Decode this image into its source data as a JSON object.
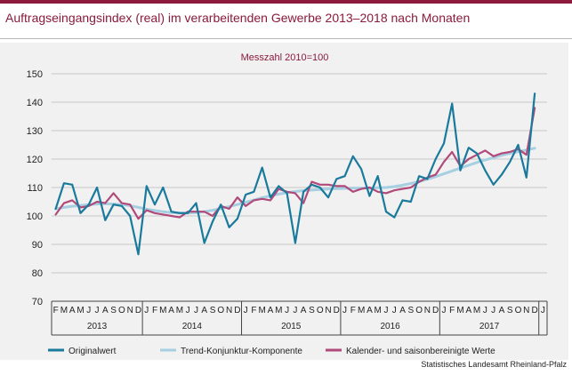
{
  "title": "Auftragseingangsindex (real) im verarbeitenden Gewerbe 2013–2018 nach Monaten",
  "source": "Statistisches Landesamt Rheinland-Pfalz",
  "colors": {
    "accent": "#8b1a3c",
    "original": "#1a7a9c",
    "trend": "#a6cfe2",
    "adjusted": "#b04a7a",
    "grid": "#c8c8c8",
    "panel": "#f1f1f1"
  },
  "chart_data": {
    "type": "line",
    "subtitle": "Messzahl 2010=100",
    "ylim": [
      70,
      150
    ],
    "yticks": [
      70,
      80,
      90,
      100,
      110,
      120,
      130,
      140,
      150
    ],
    "grid": "horizontal",
    "legend_position": "bottom",
    "month_labels": [
      "F",
      "M",
      "A",
      "M",
      "J",
      "J",
      "A",
      "S",
      "O",
      "N",
      "D",
      "J",
      "F",
      "M",
      "A",
      "M",
      "J",
      "J",
      "A",
      "S",
      "O",
      "N",
      "D",
      "J",
      "F",
      "M",
      "A",
      "M",
      "J",
      "J",
      "A",
      "S",
      "O",
      "N",
      "D",
      "J",
      "F",
      "M",
      "A",
      "M",
      "J",
      "J",
      "A",
      "S",
      "O",
      "N",
      "D",
      "J",
      "F",
      "M",
      "A",
      "M",
      "J",
      "J",
      "A",
      "S",
      "O",
      "N",
      "D",
      "J"
    ],
    "year_groups": [
      {
        "label": "2013",
        "span": 11
      },
      {
        "label": "2014",
        "span": 12
      },
      {
        "label": "2015",
        "span": 12
      },
      {
        "label": "2016",
        "span": 12
      },
      {
        "label": "2017",
        "span": 12
      },
      {
        "label": "",
        "span": 1
      }
    ],
    "series": [
      {
        "name": "Originalwert",
        "values": [
          102.5,
          111.5,
          111,
          101,
          104,
          110,
          98.5,
          104,
          103.5,
          100,
          86.5,
          110.5,
          104,
          110,
          101.5,
          101,
          101,
          104.5,
          90.5,
          98,
          104,
          96,
          99,
          107.5,
          108.5,
          117,
          106.5,
          110.5,
          108,
          90.5,
          108.5,
          111,
          110,
          106.5,
          113,
          114,
          121,
          116.5,
          107,
          114,
          101.5,
          99.5,
          105.5,
          105,
          114,
          113,
          120,
          125.5,
          139.5,
          116,
          124,
          122,
          116,
          111,
          114.5,
          119,
          125,
          113.5,
          143
        ]
      },
      {
        "name": "Trend-Konjunktur-Komponente",
        "values": [
          102.5,
          103,
          103.4,
          103.7,
          104,
          104.2,
          104.3,
          104.2,
          104,
          103.6,
          103,
          102.4,
          101.9,
          101.5,
          101.2,
          101,
          101,
          101.2,
          101.5,
          102,
          102.6,
          103.3,
          104,
          104.8,
          105.6,
          106.4,
          107.1,
          107.7,
          108.2,
          108.6,
          108.9,
          109.1,
          109.3,
          109.5,
          109.6,
          109.7,
          109.8,
          109.8,
          109.8,
          109.9,
          110,
          110.3,
          110.8,
          111.4,
          112.1,
          112.9,
          113.8,
          114.8,
          115.8,
          116.8,
          117.8,
          118.8,
          119.7,
          120.5,
          121.3,
          122,
          122.6,
          123.2,
          123.8
        ]
      },
      {
        "name": "Kalender- und saisonbereinigte Werte",
        "values": [
          100.5,
          104.5,
          105.5,
          103,
          103.5,
          105,
          104.5,
          108,
          104.5,
          104,
          99,
          102,
          101,
          100.5,
          100,
          99.5,
          101.5,
          101.5,
          101.5,
          100,
          103.5,
          102.5,
          106.5,
          103.5,
          105.5,
          106,
          105.5,
          109.5,
          108.5,
          108,
          104.5,
          112,
          111,
          111,
          110.5,
          110.5,
          108.5,
          109.5,
          110,
          108.5,
          108,
          109,
          109.5,
          110,
          112,
          113.5,
          114.5,
          119,
          122.5,
          117.5,
          120,
          121.5,
          123,
          121,
          122,
          122.5,
          123.5,
          121.5,
          138
        ]
      }
    ]
  }
}
